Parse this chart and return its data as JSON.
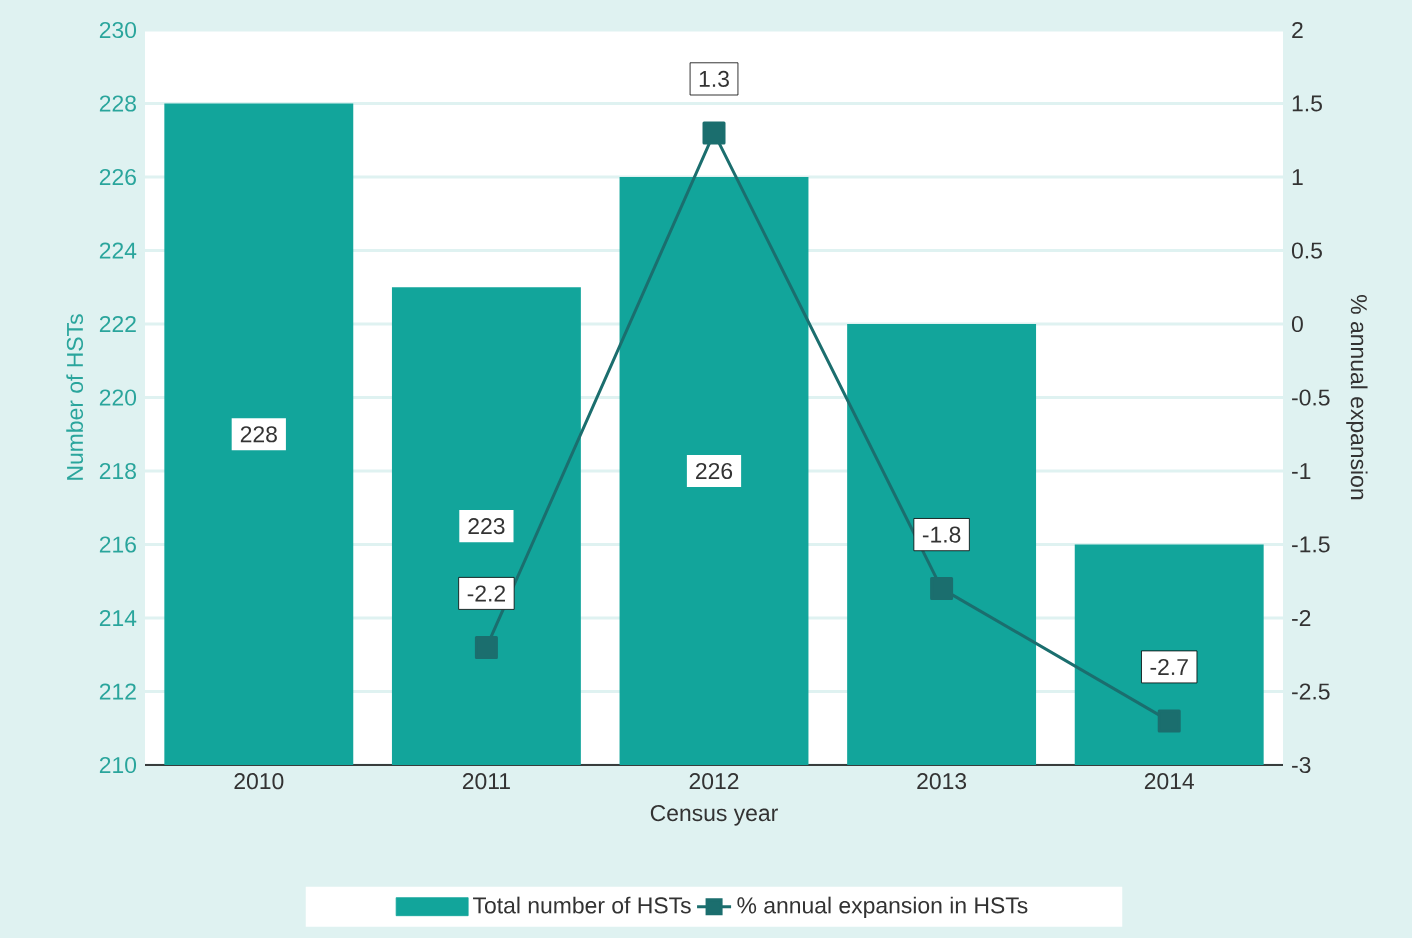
{
  "chart_data": {
    "type": "bar",
    "xlabel": "Census year",
    "ylabel": "Number of HSTs",
    "y2label": "% annual expansion",
    "categories": [
      "2010",
      "2011",
      "2012",
      "2013",
      "2014"
    ],
    "series": [
      {
        "name": "Total number of HSTs",
        "color": "#12a59b",
        "values": [
          228,
          223,
          226,
          222,
          216
        ],
        "value_labels": [
          "228",
          "223",
          "226",
          null,
          null
        ]
      },
      {
        "name": "% annual expansion in HSTs",
        "type": "line",
        "axis": "y2",
        "color": "#1b6e6e",
        "values": [
          null,
          -2.2,
          1.3,
          -1.8,
          -2.7
        ],
        "value_labels": [
          null,
          "-2.2",
          "1.3",
          "-1.8",
          "-2.7"
        ],
        "marker": "square",
        "line_style": "solid"
      }
    ],
    "ylim": [
      210,
      230
    ],
    "yticks": [
      210,
      212,
      214,
      216,
      218,
      220,
      222,
      224,
      226,
      228,
      230
    ],
    "y2lim": [
      -3,
      2
    ],
    "y2ticks": [
      -3,
      -2.5,
      -2,
      -1.5,
      -1,
      -0.5,
      0,
      0.5,
      1,
      1.5,
      2
    ],
    "grid": "y",
    "legend": "bottom"
  }
}
